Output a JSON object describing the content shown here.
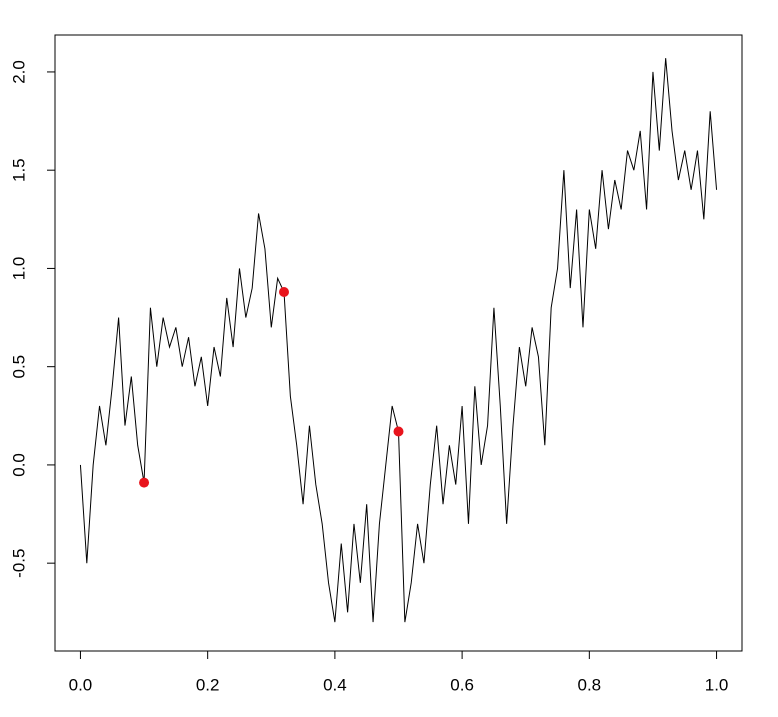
{
  "chart_data": {
    "type": "line",
    "xlim": [
      -0.04,
      1.04
    ],
    "ylim": [
      -0.947,
      2.188
    ],
    "xticks": [
      {
        "value": 0,
        "label": "0.0"
      },
      {
        "value": 0.2,
        "label": "0.2"
      },
      {
        "value": 0.4,
        "label": "0.4"
      },
      {
        "value": 0.6,
        "label": "0.6"
      },
      {
        "value": 0.8,
        "label": "0.8"
      },
      {
        "value": 1,
        "label": "1.0"
      }
    ],
    "yticks": [
      -0.5,
      {
        "value": 0,
        "label": "0.0"
      },
      0.5,
      {
        "value": 1,
        "label": "1.0"
      },
      1.5,
      {
        "value": 2,
        "label": "2.0"
      }
    ],
    "series": [
      {
        "type": "line",
        "color": "#000000",
        "x": [
          0,
          0.01,
          0.02,
          0.03,
          0.04,
          0.05,
          0.06,
          0.07,
          0.08,
          0.09,
          0.1,
          0.11,
          0.12,
          0.13,
          0.14,
          0.15,
          0.16,
          0.17,
          0.18,
          0.19,
          0.2,
          0.21,
          0.22,
          0.23,
          0.24,
          0.25,
          0.26,
          0.27,
          0.28,
          0.29,
          0.3,
          0.31,
          0.32,
          0.33,
          0.34,
          0.35,
          0.36,
          0.37,
          0.38,
          0.39,
          0.4,
          0.41,
          0.42,
          0.43,
          0.44,
          0.45,
          0.46,
          0.47,
          0.48,
          0.49,
          0.5,
          0.51,
          0.52,
          0.53,
          0.54,
          0.55,
          0.56,
          0.57,
          0.58,
          0.59,
          0.6,
          0.61,
          0.62,
          0.63,
          0.64,
          0.65,
          0.66,
          0.67,
          0.68,
          0.69,
          0.7,
          0.71,
          0.72,
          0.73,
          0.74,
          0.75,
          0.76,
          0.77,
          0.78,
          0.79,
          0.8,
          0.81,
          0.82,
          0.83,
          0.84,
          0.85,
          0.86,
          0.87,
          0.88,
          0.89,
          0.9,
          0.91,
          0.92,
          0.93,
          0.94,
          0.95,
          0.96,
          0.97,
          0.98,
          0.99,
          1
        ],
        "values": [
          0,
          -0.5,
          0,
          0.3,
          0.1,
          0.4,
          0.75,
          0.2,
          0.45,
          0.1,
          -0.09,
          0.8,
          0.5,
          0.75,
          0.6,
          0.7,
          0.5,
          0.65,
          0.4,
          0.55,
          0.3,
          0.6,
          0.45,
          0.85,
          0.6,
          1,
          0.75,
          0.9,
          1.28,
          1.1,
          0.7,
          0.95,
          0.88,
          0.35,
          0.1,
          -0.2,
          0.2,
          -0.1,
          -0.3,
          -0.6,
          -0.8,
          -0.4,
          -0.75,
          -0.3,
          -0.6,
          -0.2,
          -0.8,
          -0.3,
          0,
          0.3,
          0.17,
          -0.8,
          -0.6,
          -0.3,
          -0.5,
          -0.1,
          0.2,
          -0.2,
          0.1,
          -0.1,
          0.3,
          -0.3,
          0.4,
          0,
          0.2,
          0.8,
          0.3,
          -0.3,
          0.2,
          0.6,
          0.4,
          0.7,
          0.55,
          0.1,
          0.8,
          1,
          1.5,
          0.9,
          1.3,
          0.7,
          1.3,
          1.1,
          1.5,
          1.2,
          1.45,
          1.3,
          1.6,
          1.5,
          1.7,
          1.3,
          2,
          1.6,
          2.07,
          1.7,
          1.45,
          1.6,
          1.4,
          1.6,
          1.25,
          1.8,
          1.4
        ]
      },
      {
        "type": "scatter",
        "color": "#e8141c",
        "x": [
          0.1,
          0.32,
          0.5
        ],
        "values": [
          -0.09,
          0.88,
          0.17
        ]
      }
    ]
  }
}
